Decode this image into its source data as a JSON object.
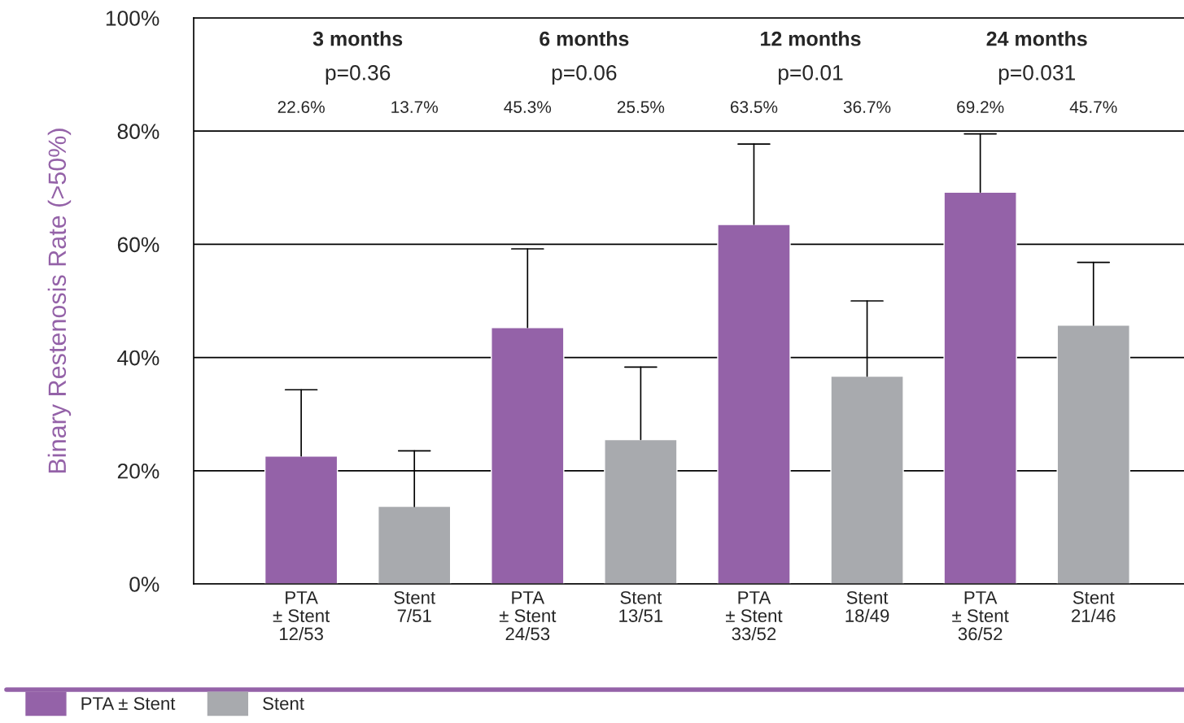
{
  "chart_data": {
    "type": "bar",
    "ylabel": "Binary Restenosis Rate (>50%)",
    "categories": [
      "PTA\n± Stent\n12/53",
      "Stent\n7/51",
      "PTA\n± Stent\n24/53",
      "Stent\n13/51",
      "PTA\n± Stent\n33/52",
      "Stent\n18/49",
      "PTA\n± Stent\n36/52",
      "Stent\n21/46"
    ],
    "series": [
      {
        "name": "PTA ± Stent",
        "color": "#9462a8",
        "values": [
          22.6,
          null,
          45.3,
          null,
          63.5,
          null,
          69.2,
          null
        ],
        "errors": [
          [
            22.6,
            34.3
          ],
          null,
          [
            45.3,
            59.2
          ],
          null,
          [
            63.5,
            77.7
          ],
          null,
          [
            69.2,
            79.5
          ],
          null
        ]
      },
      {
        "name": "Stent",
        "color": "#a8aaae",
        "values": [
          null,
          13.7,
          null,
          25.5,
          null,
          36.7,
          null,
          45.7
        ],
        "errors": [
          null,
          [
            13.7,
            23.5
          ],
          null,
          [
            25.5,
            38.3
          ],
          null,
          [
            36.7,
            50.0
          ],
          null,
          [
            45.7,
            56.8
          ]
        ]
      }
    ],
    "annotations": [
      "3 months",
      "p=0.36",
      "22.6%",
      "13.7%",
      "6 months",
      "p=0.06",
      "45.3%",
      "25.5%",
      "12 months",
      "p=0.01",
      "63.5%",
      "36.7%",
      "24 months",
      "p=0.031",
      "69.2%",
      "45.7%"
    ],
    "ylim": [
      0,
      100
    ],
    "yticks": [
      {
        "value": 0,
        "label": "0%"
      },
      {
        "value": 20,
        "label": "20%"
      },
      {
        "value": 40,
        "label": "40%"
      },
      {
        "value": 60,
        "label": "60%"
      },
      {
        "value": 80,
        "label": "80%"
      },
      {
        "value": 100,
        "label": "100%"
      }
    ],
    "grid": "y",
    "legend": "bottom"
  }
}
